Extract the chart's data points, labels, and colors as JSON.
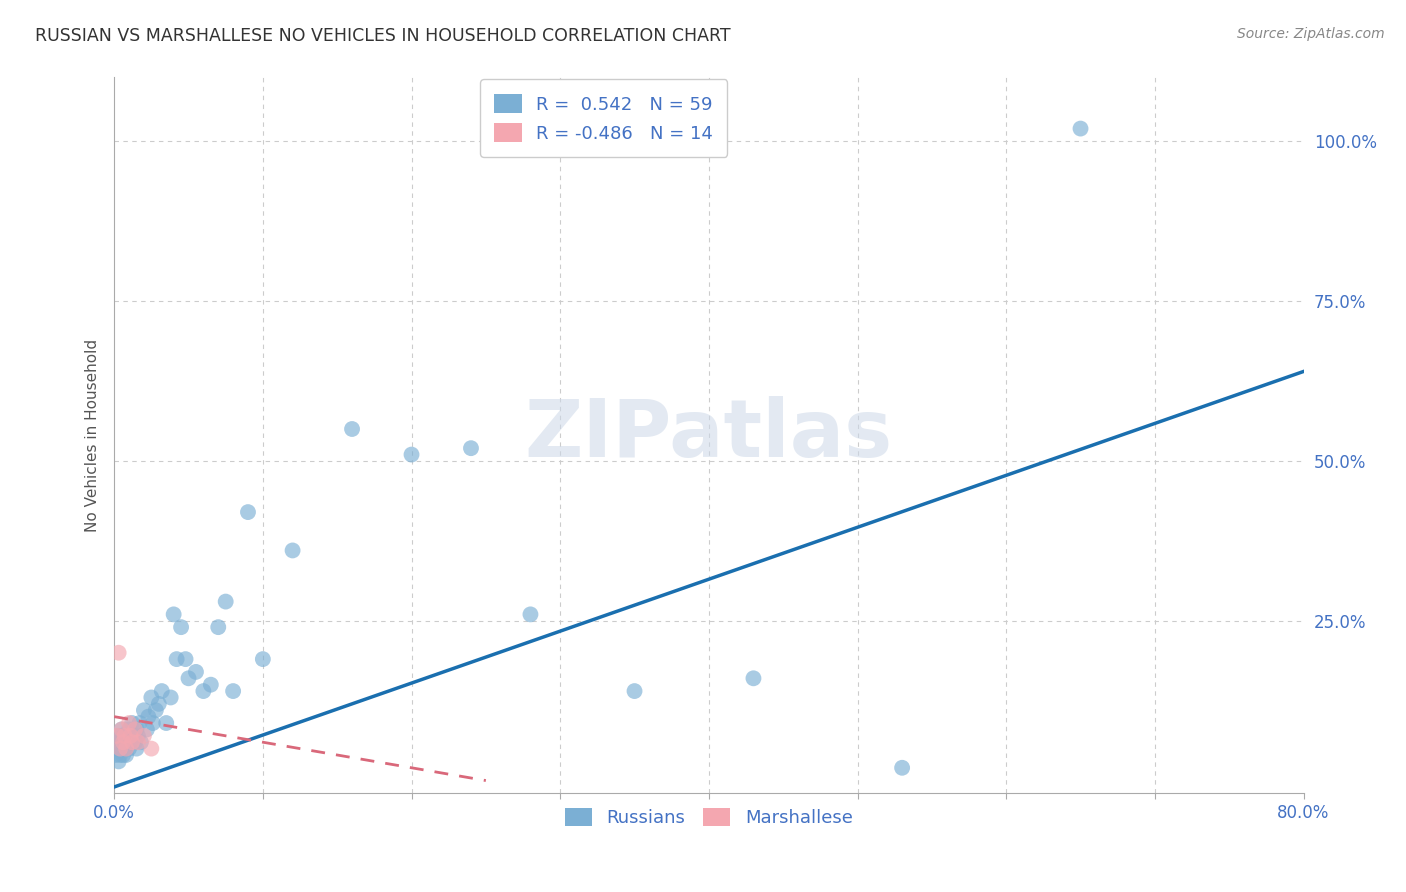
{
  "title": "RUSSIAN VS MARSHALLESE NO VEHICLES IN HOUSEHOLD CORRELATION CHART",
  "source": "Source: ZipAtlas.com",
  "ylabel": "No Vehicles in Household",
  "xlim": [
    0.0,
    0.8
  ],
  "ylim": [
    -0.02,
    1.1
  ],
  "yticks": [
    0.0,
    0.25,
    0.5,
    0.75,
    1.0
  ],
  "ytick_labels": [
    "",
    "25.0%",
    "50.0%",
    "75.0%",
    "100.0%"
  ],
  "xticks": [
    0.0,
    0.1,
    0.2,
    0.3,
    0.4,
    0.5,
    0.6,
    0.7,
    0.8
  ],
  "xtick_labels": [
    "0.0%",
    "",
    "",
    "",
    "",
    "",
    "",
    "",
    "80.0%"
  ],
  "russian_color": "#7bafd4",
  "marshallese_color": "#f4a7b0",
  "russian_line_color": "#1a6faf",
  "marshallese_line_color": "#d9687a",
  "R_russian": 0.542,
  "N_russian": 59,
  "R_marshallese": -0.486,
  "N_marshallese": 14,
  "watermark": "ZIPatlas",
  "background_color": "#ffffff",
  "grid_color": "#cccccc",
  "title_color": "#333333",
  "tick_label_color": "#4472c4",
  "russian_line_x0": 0.0,
  "russian_line_y0": -0.01,
  "russian_line_x1": 0.8,
  "russian_line_y1": 0.64,
  "marshallese_line_x0": 0.0,
  "marshallese_line_y0": 0.1,
  "marshallese_line_x1": 0.25,
  "marshallese_line_y1": 0.0,
  "russian_x": [
    0.001,
    0.002,
    0.002,
    0.003,
    0.003,
    0.004,
    0.004,
    0.005,
    0.005,
    0.006,
    0.006,
    0.007,
    0.007,
    0.008,
    0.008,
    0.009,
    0.01,
    0.01,
    0.011,
    0.012,
    0.013,
    0.014,
    0.015,
    0.015,
    0.016,
    0.017,
    0.018,
    0.02,
    0.022,
    0.023,
    0.025,
    0.026,
    0.028,
    0.03,
    0.032,
    0.035,
    0.038,
    0.04,
    0.042,
    0.045,
    0.048,
    0.05,
    0.055,
    0.06,
    0.065,
    0.07,
    0.075,
    0.08,
    0.09,
    0.1,
    0.12,
    0.16,
    0.2,
    0.24,
    0.28,
    0.35,
    0.43,
    0.53,
    0.65
  ],
  "russian_y": [
    0.04,
    0.05,
    0.07,
    0.03,
    0.06,
    0.04,
    0.07,
    0.05,
    0.08,
    0.04,
    0.06,
    0.05,
    0.07,
    0.04,
    0.06,
    0.07,
    0.05,
    0.08,
    0.06,
    0.09,
    0.07,
    0.06,
    0.05,
    0.08,
    0.07,
    0.09,
    0.06,
    0.11,
    0.08,
    0.1,
    0.13,
    0.09,
    0.11,
    0.12,
    0.14,
    0.09,
    0.13,
    0.26,
    0.19,
    0.24,
    0.19,
    0.16,
    0.17,
    0.14,
    0.15,
    0.24,
    0.28,
    0.14,
    0.42,
    0.19,
    0.36,
    0.55,
    0.51,
    0.52,
    0.26,
    0.14,
    0.16,
    0.02,
    1.02
  ],
  "marshallese_x": [
    0.002,
    0.003,
    0.004,
    0.005,
    0.006,
    0.007,
    0.008,
    0.01,
    0.011,
    0.012,
    0.014,
    0.016,
    0.02,
    0.025
  ],
  "marshallese_y": [
    0.07,
    0.2,
    0.05,
    0.08,
    0.06,
    0.07,
    0.05,
    0.09,
    0.07,
    0.06,
    0.08,
    0.06,
    0.07,
    0.05
  ]
}
